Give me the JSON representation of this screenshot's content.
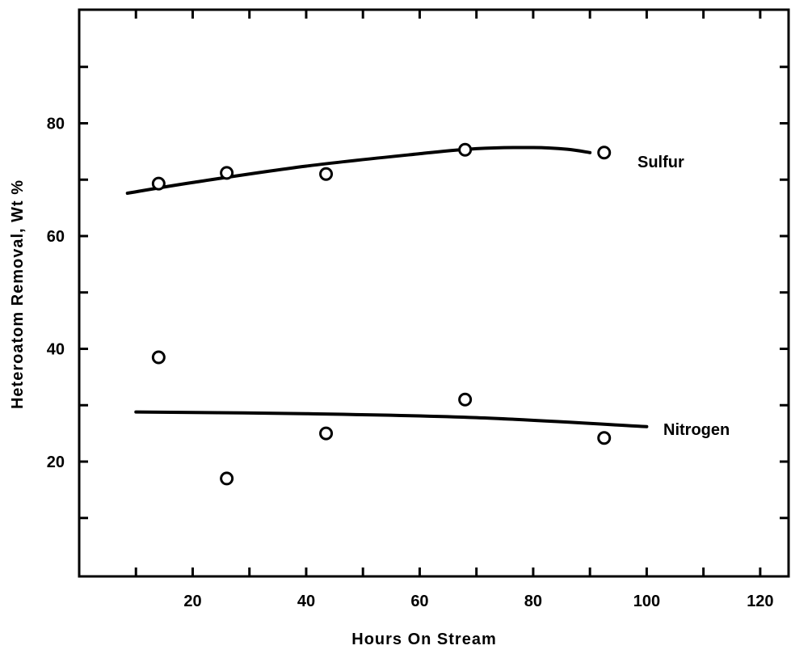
{
  "chart_data": {
    "type": "scatter",
    "title": "",
    "xlabel": "Hours On Stream",
    "ylabel": "Heteroatom Removal, Wt %",
    "xlim": [
      0,
      125
    ],
    "ylim": [
      0,
      100
    ],
    "x_ticks": [
      20,
      40,
      60,
      80,
      100,
      120
    ],
    "y_ticks": [
      20,
      40,
      60,
      80
    ],
    "grid": false,
    "series": [
      {
        "name": "Sulfur",
        "points": [
          [
            14,
            69.3
          ],
          [
            26,
            71.2
          ],
          [
            43.5,
            71
          ],
          [
            68,
            75.3
          ],
          [
            92.5,
            74.8
          ]
        ],
        "trend": [
          [
            8.5,
            67.6
          ],
          [
            20,
            69.5
          ],
          [
            40,
            72.4
          ],
          [
            60,
            74.6
          ],
          [
            70,
            75.5
          ],
          [
            80,
            75.7
          ],
          [
            86,
            75.4
          ],
          [
            90,
            74.8
          ]
        ]
      },
      {
        "name": "Nitrogen",
        "points": [
          [
            14,
            38.5
          ],
          [
            26,
            17
          ],
          [
            43.5,
            25
          ],
          [
            68,
            31
          ],
          [
            92.5,
            24.2
          ]
        ],
        "trend": [
          [
            10,
            28.8
          ],
          [
            40,
            28.5
          ],
          [
            70,
            27.8
          ],
          [
            100,
            26.2
          ]
        ]
      }
    ]
  }
}
